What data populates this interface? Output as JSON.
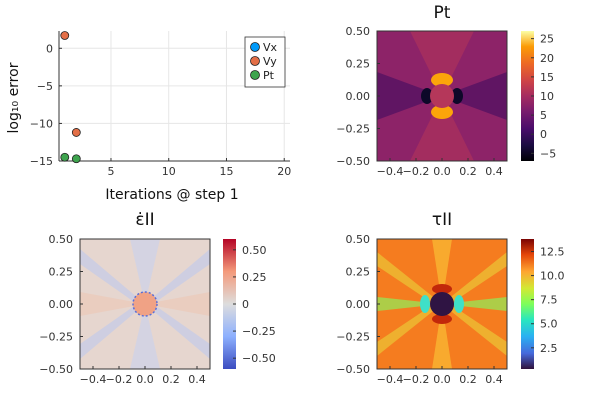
{
  "chart_data": [
    {
      "type": "scatter",
      "xlabel": "Iterations @ step 1",
      "ylabel": "log₁₀ error",
      "xlim": [
        0.5,
        20.5
      ],
      "ylim": [
        -15,
        2.3
      ],
      "xticks": [
        5,
        10,
        15,
        20
      ],
      "yticks": [
        0,
        -5,
        -10,
        -15
      ],
      "grid": true,
      "legend": "top-right",
      "series": [
        {
          "name": "Vx",
          "color": "#009AFA",
          "points": []
        },
        {
          "name": "Vy",
          "color": "#E36F47",
          "points": [
            [
              1,
              1.7
            ],
            [
              2,
              -11.2
            ]
          ]
        },
        {
          "name": "Pt",
          "color": "#3EA44E",
          "points": [
            [
              1,
              -14.5
            ],
            [
              2,
              -14.7
            ]
          ]
        }
      ]
    },
    {
      "type": "heatmap",
      "title": "Pt",
      "colormap": "inferno",
      "field": "pressure",
      "xlim": [
        -0.5,
        0.5
      ],
      "ylim": [
        -0.5,
        0.5
      ],
      "xticks": [
        "−0.4",
        "−0.2",
        "0.0",
        "0.2",
        "0.4"
      ],
      "yticks": [
        "0.50",
        "0.25",
        "0.00",
        "−0.25",
        "−0.50"
      ],
      "clim": [
        -7,
        27
      ],
      "cticks": [
        "25",
        "20",
        "15",
        "10",
        "5",
        "0",
        "−5"
      ],
      "cvals": [
        25,
        20,
        15,
        10,
        5,
        0,
        -5
      ]
    },
    {
      "type": "heatmap",
      "title": "ε̇II",
      "colormap": "coolwarm",
      "field": "strainrate",
      "xlim": [
        -0.5,
        0.5
      ],
      "ylim": [
        -0.5,
        0.5
      ],
      "xticks": [
        "−0.4",
        "−0.2",
        "0.0",
        "0.2",
        "0.4"
      ],
      "yticks": [
        "0.50",
        "0.25",
        "0.00",
        "−0.25",
        "−0.50"
      ],
      "clim": [
        -0.6,
        0.6
      ],
      "cticks": [
        "0.50",
        "0.25",
        "0",
        "−0.25",
        "−0.50"
      ],
      "cvals": [
        0.5,
        0.25,
        0,
        -0.25,
        -0.5
      ]
    },
    {
      "type": "heatmap",
      "title": "τII",
      "colormap": "turbo",
      "field": "stress",
      "xlim": [
        -0.5,
        0.5
      ],
      "ylim": [
        -0.5,
        0.5
      ],
      "xticks": [
        "−0.4",
        "−0.2",
        "0.0",
        "0.2",
        "0.4"
      ],
      "yticks": [
        "0.50",
        "0.25",
        "0.00",
        "−0.25",
        "−0.50"
      ],
      "clim": [
        0.3,
        13.8
      ],
      "cticks": [
        "12.5",
        "10.0",
        "7.5",
        "5.0",
        "2.5"
      ],
      "cvals": [
        12.5,
        10.0,
        7.5,
        5.0,
        2.5
      ]
    }
  ]
}
